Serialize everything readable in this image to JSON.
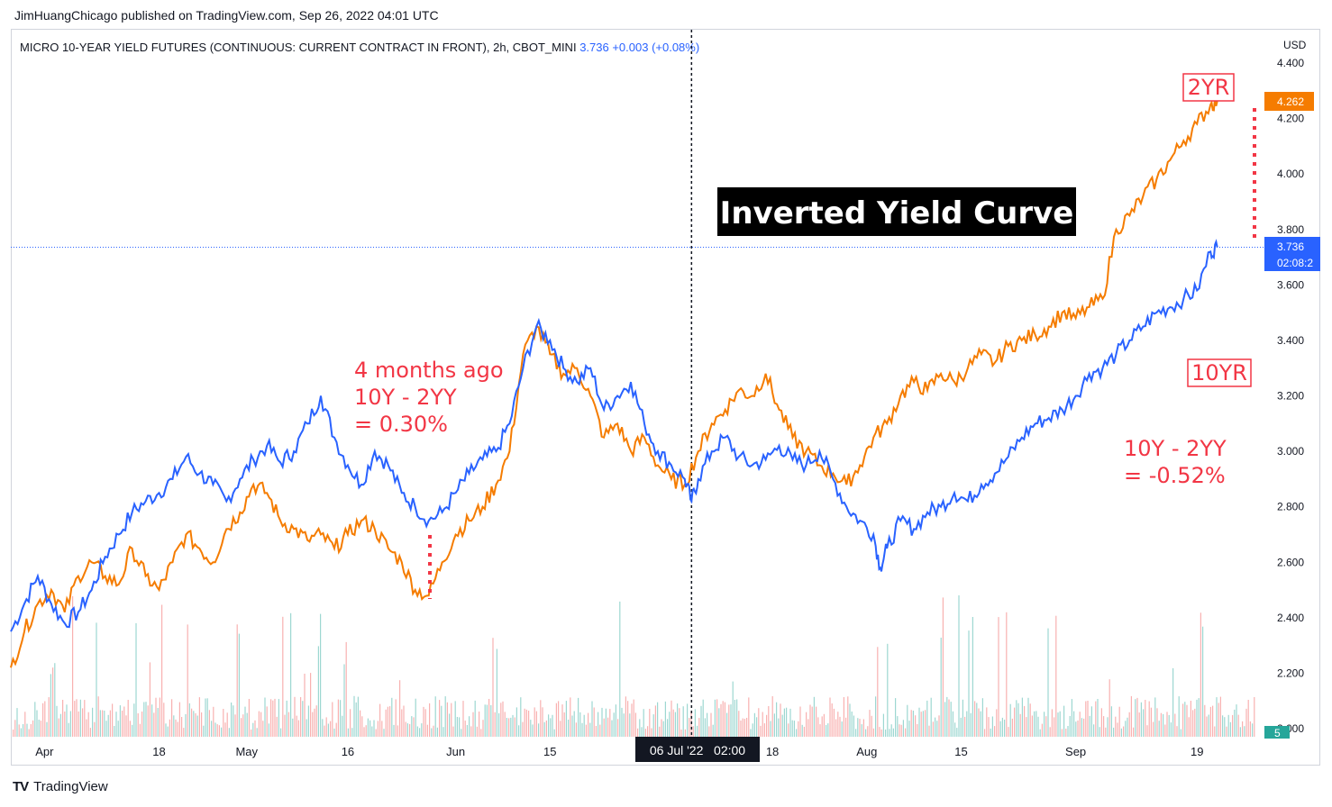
{
  "header": {
    "publisher": "JimHuangChicago published on TradingView.com, Sep 26, 2022 04:01 UTC",
    "legend_symbol": "MICRO 10-YEAR YIELD FUTURES (CONTINUOUS: CURRENT CONTRACT IN FRONT), 2h, CBOT_MINI",
    "legend_value": "3.736  +0.003  (+0.08%)",
    "currency": "USD"
  },
  "footer": {
    "logo": "TV",
    "brand": "TradingView"
  },
  "colors": {
    "ten_year": "#2962ff",
    "two_year": "#f57c00",
    "annotation": "#f23645",
    "volume_up": "#26a69a",
    "volume_down": "#ef5350"
  },
  "annotations": {
    "left_line1": "4 months ago",
    "left_line2": "10Y - 2YY",
    "left_line3": "= 0.30%",
    "right_line1": "10Y - 2YY",
    "right_line2": "= -0.52%",
    "title": "Inverted Yield Curve",
    "label_2yr": "2YR",
    "label_10yr": "10YR"
  },
  "price_tags": {
    "two_year": "4.262",
    "ten_year": "3.736",
    "countdown": "02:08:2",
    "volume": "5"
  },
  "crosshair_label": "06 Jul '22   02:00",
  "chart_data": {
    "type": "line",
    "ylim": [
      2.0,
      4.4
    ],
    "y_ticks": [
      "4.400",
      "4.200",
      "4.000",
      "3.800",
      "3.600",
      "3.400",
      "3.200",
      "3.000",
      "2.800",
      "2.600",
      "2.400",
      "2.200",
      "2.000"
    ],
    "x_ticks": [
      "Apr",
      "18",
      "May",
      "16",
      "Jun",
      "15",
      "18",
      "Aug",
      "15",
      "Sep",
      "19"
    ],
    "x_ticks_day": [
      0,
      17,
      30,
      45,
      61,
      75,
      108,
      122,
      136,
      153,
      171
    ],
    "x_range_day": [
      -5,
      181
    ],
    "crosshair_day": 96,
    "series": [
      {
        "key": "ten_year",
        "points": [
          [
            -5,
            2.35
          ],
          [
            -3,
            2.45
          ],
          [
            -1,
            2.55
          ],
          [
            1,
            2.45
          ],
          [
            3,
            2.38
          ],
          [
            5,
            2.42
          ],
          [
            7,
            2.5
          ],
          [
            9,
            2.62
          ],
          [
            11,
            2.7
          ],
          [
            13,
            2.78
          ],
          [
            15,
            2.82
          ],
          [
            17,
            2.85
          ],
          [
            19,
            2.9
          ],
          [
            21,
            2.98
          ],
          [
            23,
            2.92
          ],
          [
            25,
            2.88
          ],
          [
            27,
            2.82
          ],
          [
            29,
            2.9
          ],
          [
            31,
            2.97
          ],
          [
            33,
            3.02
          ],
          [
            35,
            2.96
          ],
          [
            37,
            3.0
          ],
          [
            39,
            3.1
          ],
          [
            41,
            3.2
          ],
          [
            43,
            3.05
          ],
          [
            45,
            2.95
          ],
          [
            47,
            2.88
          ],
          [
            49,
            3.0
          ],
          [
            51,
            2.95
          ],
          [
            53,
            2.85
          ],
          [
            55,
            2.8
          ],
          [
            57,
            2.75
          ],
          [
            59,
            2.78
          ],
          [
            61,
            2.85
          ],
          [
            63,
            2.92
          ],
          [
            65,
            2.97
          ],
          [
            67,
            3.0
          ],
          [
            69,
            3.1
          ],
          [
            71,
            3.3
          ],
          [
            73,
            3.45
          ],
          [
            75,
            3.4
          ],
          [
            77,
            3.3
          ],
          [
            79,
            3.25
          ],
          [
            81,
            3.3
          ],
          [
            83,
            3.15
          ],
          [
            85,
            3.2
          ],
          [
            87,
            3.25
          ],
          [
            89,
            3.1
          ],
          [
            91,
            3.0
          ],
          [
            93,
            2.95
          ],
          [
            95,
            2.9
          ],
          [
            96,
            2.82
          ],
          [
            97,
            2.9
          ],
          [
            99,
            3.0
          ],
          [
            101,
            3.05
          ],
          [
            103,
            2.98
          ],
          [
            105,
            2.95
          ],
          [
            107,
            2.97
          ],
          [
            109,
            3.02
          ],
          [
            111,
            2.97
          ],
          [
            113,
            2.95
          ],
          [
            115,
            3.0
          ],
          [
            117,
            2.9
          ],
          [
            119,
            2.8
          ],
          [
            121,
            2.75
          ],
          [
            123,
            2.7
          ],
          [
            124,
            2.58
          ],
          [
            125,
            2.65
          ],
          [
            127,
            2.75
          ],
          [
            129,
            2.72
          ],
          [
            131,
            2.78
          ],
          [
            133,
            2.8
          ],
          [
            135,
            2.85
          ],
          [
            137,
            2.82
          ],
          [
            139,
            2.88
          ],
          [
            141,
            2.92
          ],
          [
            143,
            2.98
          ],
          [
            145,
            3.05
          ],
          [
            147,
            3.1
          ],
          [
            149,
            3.12
          ],
          [
            151,
            3.15
          ],
          [
            153,
            3.2
          ],
          [
            155,
            3.28
          ],
          [
            157,
            3.3
          ],
          [
            159,
            3.35
          ],
          [
            161,
            3.4
          ],
          [
            163,
            3.45
          ],
          [
            165,
            3.5
          ],
          [
            167,
            3.52
          ],
          [
            169,
            3.55
          ],
          [
            171,
            3.58
          ],
          [
            173,
            3.72
          ],
          [
            174,
            3.736
          ]
        ]
      },
      {
        "key": "two_year",
        "points": [
          [
            -5,
            2.22
          ],
          [
            -3,
            2.35
          ],
          [
            -1,
            2.45
          ],
          [
            1,
            2.5
          ],
          [
            3,
            2.42
          ],
          [
            5,
            2.55
          ],
          [
            7,
            2.6
          ],
          [
            9,
            2.55
          ],
          [
            11,
            2.52
          ],
          [
            13,
            2.65
          ],
          [
            15,
            2.55
          ],
          [
            17,
            2.5
          ],
          [
            19,
            2.6
          ],
          [
            21,
            2.7
          ],
          [
            23,
            2.65
          ],
          [
            25,
            2.6
          ],
          [
            27,
            2.72
          ],
          [
            29,
            2.78
          ],
          [
            31,
            2.88
          ],
          [
            33,
            2.85
          ],
          [
            35,
            2.75
          ],
          [
            37,
            2.72
          ],
          [
            39,
            2.68
          ],
          [
            41,
            2.7
          ],
          [
            43,
            2.65
          ],
          [
            45,
            2.7
          ],
          [
            47,
            2.75
          ],
          [
            49,
            2.72
          ],
          [
            51,
            2.65
          ],
          [
            53,
            2.6
          ],
          [
            55,
            2.5
          ],
          [
            57,
            2.48
          ],
          [
            59,
            2.6
          ],
          [
            61,
            2.7
          ],
          [
            63,
            2.75
          ],
          [
            65,
            2.8
          ],
          [
            67,
            2.88
          ],
          [
            69,
            3.0
          ],
          [
            71,
            3.35
          ],
          [
            73,
            3.45
          ],
          [
            75,
            3.35
          ],
          [
            77,
            3.28
          ],
          [
            79,
            3.3
          ],
          [
            81,
            3.2
          ],
          [
            83,
            3.05
          ],
          [
            85,
            3.1
          ],
          [
            87,
            3.0
          ],
          [
            89,
            3.05
          ],
          [
            91,
            2.95
          ],
          [
            93,
            2.9
          ],
          [
            95,
            2.88
          ],
          [
            97,
            3.0
          ],
          [
            99,
            3.1
          ],
          [
            101,
            3.15
          ],
          [
            103,
            3.22
          ],
          [
            105,
            3.2
          ],
          [
            107,
            3.28
          ],
          [
            109,
            3.15
          ],
          [
            111,
            3.05
          ],
          [
            113,
            3.0
          ],
          [
            115,
            2.95
          ],
          [
            117,
            2.92
          ],
          [
            119,
            2.88
          ],
          [
            121,
            2.95
          ],
          [
            123,
            3.05
          ],
          [
            125,
            3.1
          ],
          [
            127,
            3.2
          ],
          [
            129,
            3.25
          ],
          [
            131,
            3.22
          ],
          [
            133,
            3.28
          ],
          [
            135,
            3.25
          ],
          [
            137,
            3.3
          ],
          [
            139,
            3.35
          ],
          [
            141,
            3.32
          ],
          [
            143,
            3.38
          ],
          [
            145,
            3.4
          ],
          [
            147,
            3.42
          ],
          [
            149,
            3.45
          ],
          [
            151,
            3.5
          ],
          [
            153,
            3.48
          ],
          [
            155,
            3.52
          ],
          [
            157,
            3.55
          ],
          [
            159,
            3.8
          ],
          [
            161,
            3.85
          ],
          [
            163,
            3.92
          ],
          [
            165,
            3.98
          ],
          [
            167,
            4.05
          ],
          [
            169,
            4.12
          ],
          [
            171,
            4.18
          ],
          [
            173,
            4.25
          ],
          [
            174,
            4.262
          ]
        ]
      }
    ]
  }
}
